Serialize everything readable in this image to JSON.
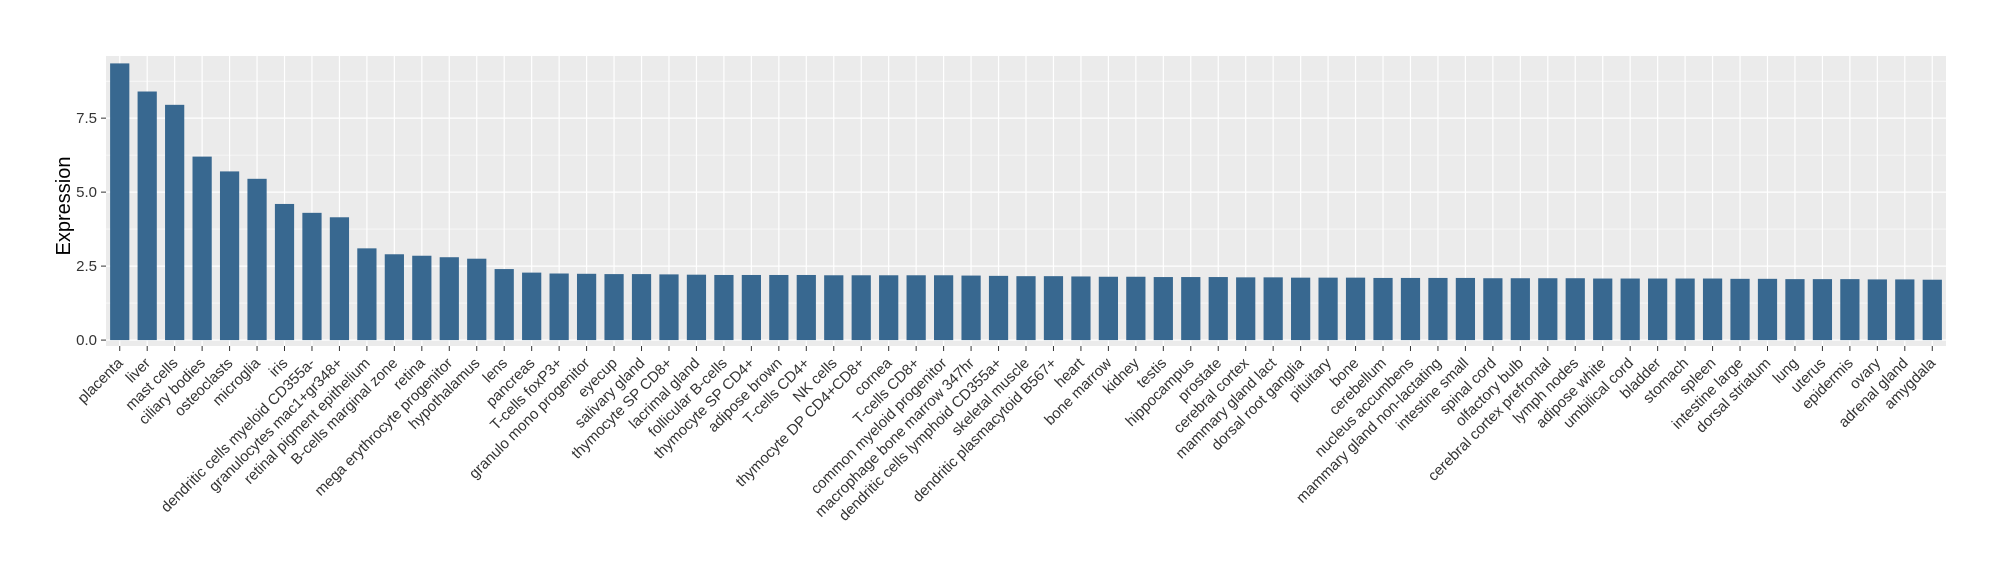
{
  "chart_data": {
    "type": "bar",
    "title": "",
    "xlabel": "",
    "ylabel": "Expression",
    "ylim": [
      -0.2,
      9.6
    ],
    "yticks": [
      0.0,
      2.5,
      5.0,
      7.5
    ],
    "ytick_labels": [
      "0.0",
      "2.5",
      "5.0",
      "7.5"
    ],
    "grid": true,
    "legend": "none",
    "bar_color": "#386890",
    "panel_color": "#EBEBEB",
    "grid_color": "#FFFFFF",
    "categories": [
      "placenta",
      "liver",
      "mast cells",
      "ciliary bodies",
      "osteoclasts",
      "microglia",
      "iris",
      "dendritic cells myeloid CD355a-",
      "granulocytes mac1+gr348+",
      "retinal pigment epithelium",
      "B-cells marginal zone",
      "retina",
      "mega erythrocyte progenitor",
      "hypothalamus",
      "lens",
      "pancreas",
      "T-cells foxP3+",
      "granulo mono progenitor",
      "eyecup",
      "salivary gland",
      "thymocyte SP CD8+",
      "lacrimal gland",
      "follicular B-cells",
      "thymocyte SP CD4+",
      "adipose brown",
      "T-cells CD4+",
      "NK cells",
      "thymocyte DP CD4+CD8+",
      "cornea",
      "T-cells CD8+",
      "common myeloid progenitor",
      "macrophage bone marrow 347hr",
      "dendritic cells lymphoid CD355a+",
      "skeletal muscle",
      "dendritic plasmacytoid B567+",
      "heart",
      "bone marrow",
      "kidney",
      "testis",
      "hippocampus",
      "prostate",
      "cerebral cortex",
      "mammary gland lact",
      "dorsal root ganglia",
      "pituitary",
      "bone",
      "cerebellum",
      "nucleus accumbens",
      "mammary gland non-lactating",
      "intestine small",
      "spinal cord",
      "olfactory bulb",
      "cerebral cortex prefrontal",
      "lymph nodes",
      "adipose white",
      "umbilical cord",
      "bladder",
      "stomach",
      "spleen",
      "intestine large",
      "dorsal striatum",
      "lung",
      "uterus",
      "epidermis",
      "ovary",
      "adrenal gland",
      "amygdala"
    ],
    "values": [
      9.35,
      8.4,
      7.95,
      6.2,
      5.7,
      5.45,
      4.6,
      4.3,
      4.15,
      3.1,
      2.9,
      2.85,
      2.8,
      2.75,
      2.4,
      2.28,
      2.25,
      2.24,
      2.23,
      2.23,
      2.22,
      2.21,
      2.2,
      2.2,
      2.2,
      2.2,
      2.19,
      2.19,
      2.19,
      2.19,
      2.19,
      2.18,
      2.17,
      2.16,
      2.16,
      2.15,
      2.14,
      2.14,
      2.13,
      2.13,
      2.13,
      2.12,
      2.12,
      2.11,
      2.11,
      2.11,
      2.1,
      2.1,
      2.1,
      2.1,
      2.09,
      2.09,
      2.09,
      2.09,
      2.08,
      2.08,
      2.08,
      2.08,
      2.08,
      2.07,
      2.07,
      2.06,
      2.06,
      2.06,
      2.05,
      2.05,
      2.04
    ]
  }
}
